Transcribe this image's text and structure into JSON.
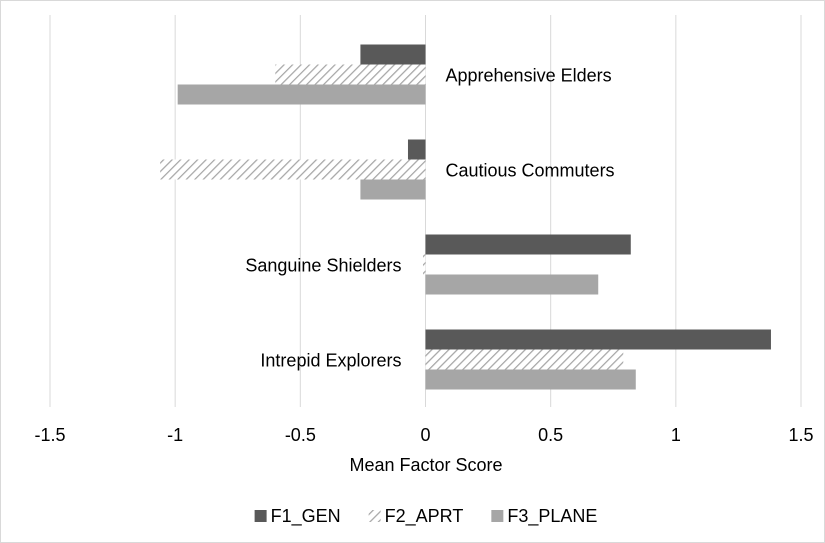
{
  "chart_data": {
    "type": "bar",
    "orientation": "horizontal",
    "x_label": "Mean Factor Score",
    "categories": [
      "Apprehensive Elders",
      "Cautious Commuters",
      "Sanguine Shielders",
      "Intrepid Explorers"
    ],
    "series": [
      {
        "name": "F1_GEN",
        "color": "#595959",
        "pattern": "solid",
        "values": [
          -0.26,
          -0.07,
          0.82,
          1.38
        ]
      },
      {
        "name": "F2_APRT",
        "color": "#a6a6a6",
        "pattern": "hatch",
        "values": [
          -0.6,
          -1.06,
          -0.01,
          0.79
        ]
      },
      {
        "name": "F3_PLANE",
        "color": "#a6a6a6",
        "pattern": "solid",
        "values": [
          -0.99,
          -0.26,
          0.69,
          0.84
        ]
      }
    ],
    "xlim": [
      -1.5,
      1.5
    ],
    "xticks": [
      -1.5,
      -1,
      -0.5,
      0,
      0.5,
      1,
      1.5
    ],
    "grid": true,
    "legend": "bottom"
  }
}
